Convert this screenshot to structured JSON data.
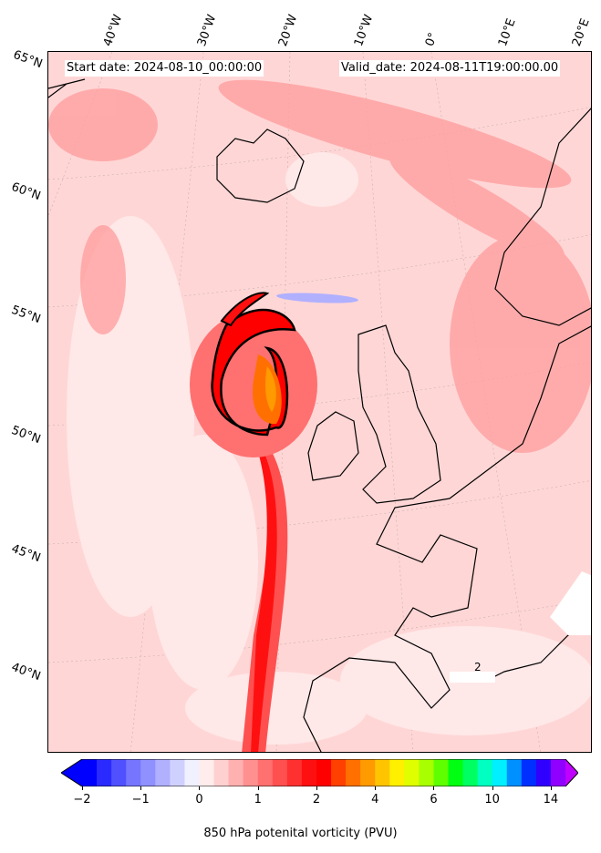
{
  "header": {
    "start_date": "Start date: 2024-08-10_00:00:00",
    "valid_date": "Valid_date: 2024-08-11T19:00:00.00"
  },
  "lon_labels": [
    "40°W",
    "30°W",
    "20°W",
    "10°W",
    "0°",
    "10°E",
    "20°E"
  ],
  "lat_labels": [
    "65°N",
    "60°N",
    "55°N",
    "50°N",
    "45°N",
    "40°N"
  ],
  "colorbar": {
    "label": "850 hPa potenital vorticity (PVU)",
    "ticks": [
      "−2",
      "−1",
      "0",
      "1",
      "2",
      "4",
      "6",
      "10",
      "14"
    ],
    "colors": [
      "#0000ff",
      "#2a2aff",
      "#5050ff",
      "#7575ff",
      "#9090ff",
      "#b0b0ff",
      "#d0d0ff",
      "#f0f0ff",
      "#ffecec",
      "#ffd0d0",
      "#ffb0b0",
      "#ff9090",
      "#ff7070",
      "#ff5050",
      "#ff3030",
      "#ff1010",
      "#ff0000",
      "#ff4000",
      "#ff7000",
      "#ff9a00",
      "#ffc400",
      "#fff000",
      "#dfff00",
      "#a8ff00",
      "#60ff00",
      "#00ff10",
      "#00ff60",
      "#00ffc0",
      "#00f0ff",
      "#0090ff",
      "#0030ff",
      "#3000ff",
      "#9000ff"
    ],
    "under_color": "#0000ff",
    "over_color": "#c000ff"
  },
  "map_annotation": "2"
}
